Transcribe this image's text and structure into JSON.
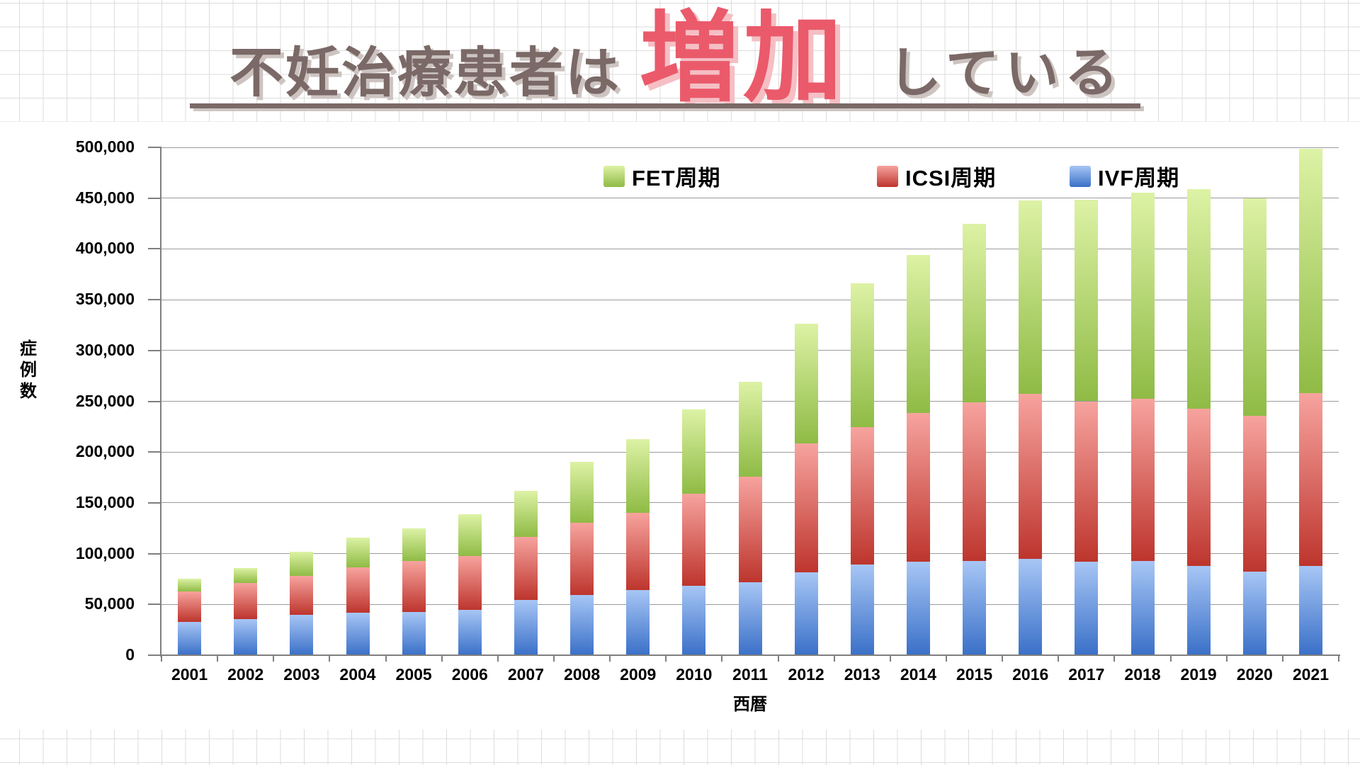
{
  "slide": {
    "title": {
      "prefix": "不妊治療患者は",
      "highlight": "増加",
      "suffix": "している"
    },
    "colors": {
      "title_text": "#7a6966",
      "title_shadow": "#cdc4c1",
      "highlight_text": "#ea5a6b",
      "highlight_shadow": "#f5bfc4",
      "underline": "#7a6966",
      "paper_grid": "#dcdcdc",
      "chart_gridline": "#9b9b9b",
      "chart_axis": "#7f7f7f"
    }
  },
  "legend": {
    "items": [
      {
        "label": "FET周期",
        "swatch_top": "#ddf2a5",
        "swatch_bottom": "#8fbb45"
      },
      {
        "label": "ICSI周期",
        "swatch_top": "#f7a39e",
        "swatch_bottom": "#bd352d"
      },
      {
        "label": "IVF周期",
        "swatch_top": "#a7c6f5",
        "swatch_bottom": "#3a70c8"
      }
    ]
  },
  "chart_data": {
    "type": "bar",
    "stacked": true,
    "title": "不妊治療患者は増加している",
    "xlabel": "西暦",
    "ylabel": "症例数",
    "ylim": [
      0,
      500000
    ],
    "ytick_step": 50000,
    "grid": "horizontal",
    "legend_position": "top-inside",
    "categories": [
      2001,
      2002,
      2003,
      2004,
      2005,
      2006,
      2007,
      2008,
      2009,
      2010,
      2011,
      2012,
      2013,
      2014,
      2015,
      2016,
      2017,
      2018,
      2019,
      2020,
      2021
    ],
    "series": [
      {
        "name": "IVF周期",
        "color_top": "#a7c6f5",
        "color_bottom": "#3a70c8",
        "values": [
          33000,
          35500,
          39500,
          42000,
          42500,
          44500,
          54500,
          59500,
          64000,
          68000,
          72000,
          81500,
          89500,
          92000,
          93000,
          95000,
          92000,
          93000,
          88000,
          82500,
          88000
        ]
      },
      {
        "name": "ICSI周期",
        "color_top": "#f7a39e",
        "color_bottom": "#bd352d",
        "values": [
          30000,
          35500,
          38500,
          44500,
          50000,
          53000,
          62000,
          71000,
          76000,
          91000,
          104000,
          127000,
          135000,
          146500,
          156000,
          162000,
          158000,
          159500,
          155000,
          153500,
          170000
        ]
      },
      {
        "name": "FET周期",
        "color_top": "#ddf2a5",
        "color_bottom": "#8fbb45",
        "values": [
          12500,
          14500,
          23500,
          29500,
          32500,
          41500,
          45000,
          60000,
          72500,
          83000,
          93500,
          118000,
          141500,
          155500,
          176000,
          191000,
          198500,
          203000,
          216000,
          214000,
          240500
        ]
      }
    ]
  }
}
